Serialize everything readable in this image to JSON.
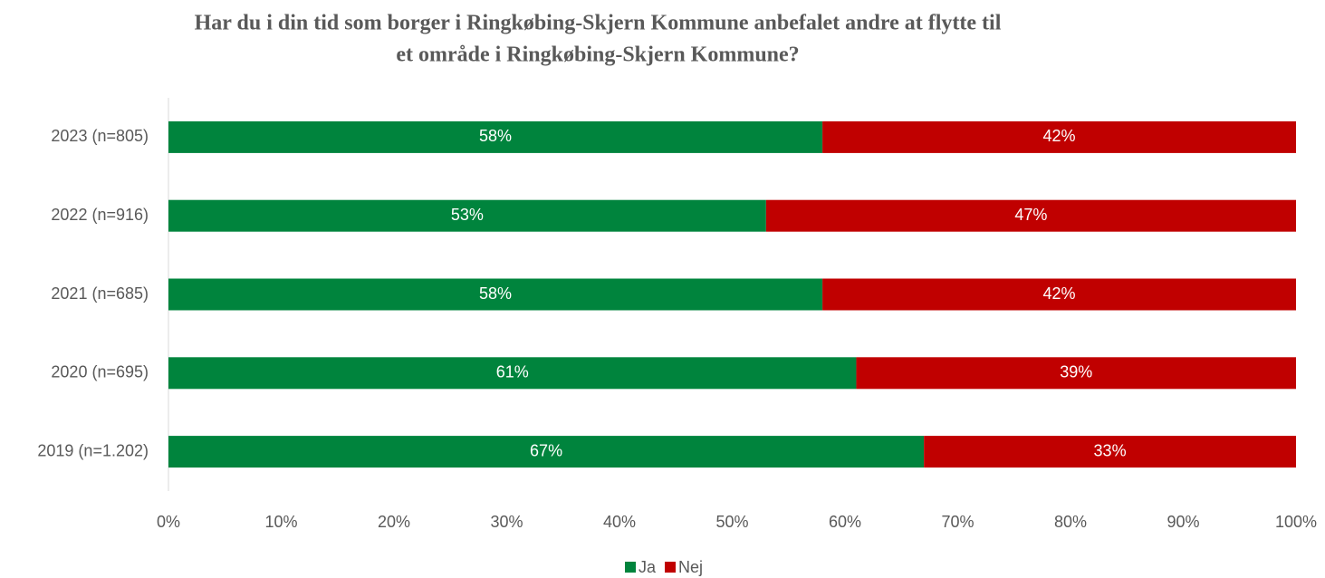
{
  "chart_data": {
    "type": "stacked-bar-horizontal",
    "title": [
      "Har du i din tid som borger i Ringkøbing-Skjern Kommune anbefalet andre at flytte til",
      "et område i Ringkøbing-Skjern Kommune?"
    ],
    "categories": [
      "2023 (n=805)",
      "2022 (n=916)",
      "2021  (n=685)",
      "2020 (n=695)",
      "2019 (n=1.202)"
    ],
    "series": [
      {
        "name": "Ja",
        "color": "#00843d",
        "values": [
          58,
          53,
          58,
          61,
          67
        ],
        "value_labels": [
          "58%",
          "53%",
          "58%",
          "61%",
          "67%"
        ]
      },
      {
        "name": "Nej",
        "color": "#c00000",
        "values": [
          42,
          47,
          42,
          39,
          33
        ],
        "value_labels": [
          "42%",
          "47%",
          "42%",
          "39%",
          "33%"
        ]
      }
    ],
    "xlim": [
      0,
      100
    ],
    "xticks": [
      {
        "value": 0,
        "label": "0%"
      },
      {
        "value": 10,
        "label": "10%"
      },
      {
        "value": 20,
        "label": "20%"
      },
      {
        "value": 30,
        "label": "30%"
      },
      {
        "value": 40,
        "label": "40%"
      },
      {
        "value": 50,
        "label": "50%"
      },
      {
        "value": 60,
        "label": "60%"
      },
      {
        "value": 70,
        "label": "70%"
      },
      {
        "value": 80,
        "label": "80%"
      },
      {
        "value": 90,
        "label": "90%"
      },
      {
        "value": 100,
        "label": "100%"
      }
    ],
    "legend": "bottom",
    "grid": false
  }
}
